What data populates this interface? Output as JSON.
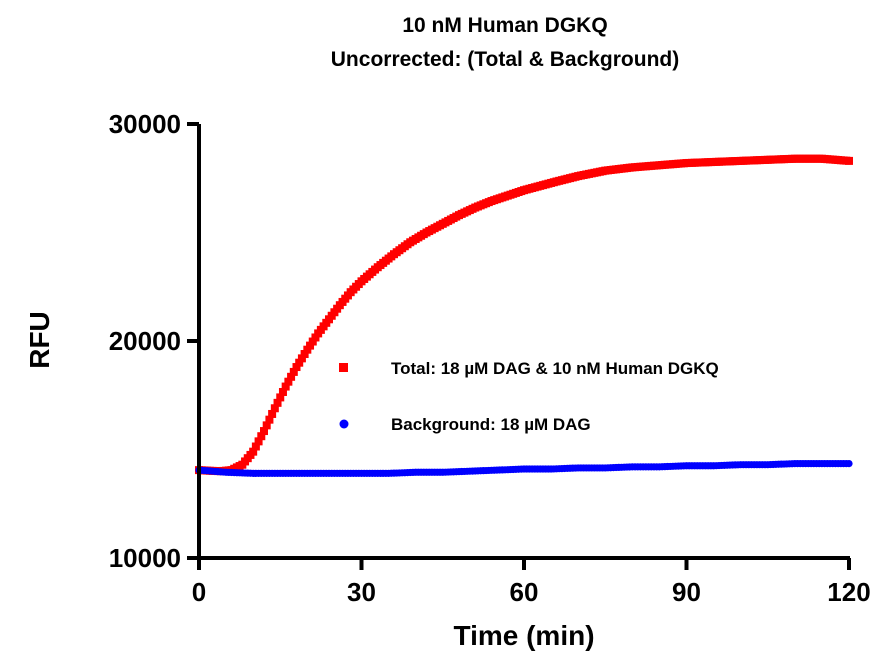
{
  "chart_data": {
    "type": "scatter",
    "title": "10 nM Human DGKQ",
    "subtitle": "Uncorrected: (Total & Background)",
    "xlabel": "Time (min)",
    "ylabel": "RFU",
    "xlim": [
      0,
      120
    ],
    "ylim": [
      10000,
      30000
    ],
    "x_ticks": [
      "0",
      "30",
      "60",
      "90",
      "120"
    ],
    "y_ticks": [
      "10000",
      "20000",
      "30000"
    ],
    "legend_position": "center-right",
    "grid": false,
    "series": [
      {
        "name": "Total: 18 µM DAG & 10 nM Human DGKQ",
        "color": "#ff0000",
        "marker": "square",
        "x": [
          0,
          2,
          4,
          6,
          8,
          10,
          12,
          14,
          16,
          18,
          20,
          22,
          24,
          26,
          28,
          30,
          33,
          36,
          39,
          42,
          45,
          48,
          51,
          54,
          57,
          60,
          63,
          66,
          70,
          75,
          80,
          85,
          90,
          95,
          100,
          105,
          110,
          115,
          120
        ],
        "y": [
          14050,
          14020,
          14000,
          14050,
          14300,
          14900,
          15850,
          16900,
          17900,
          18800,
          19600,
          20350,
          21000,
          21650,
          22250,
          22750,
          23400,
          24000,
          24550,
          25000,
          25400,
          25800,
          26150,
          26450,
          26700,
          26950,
          27150,
          27350,
          27600,
          27850,
          28000,
          28100,
          28200,
          28250,
          28300,
          28350,
          28400,
          28400,
          28300
        ]
      },
      {
        "name": "Background: 18 µM DAG",
        "color": "#0000ff",
        "marker": "circle",
        "x": [
          0,
          5,
          10,
          15,
          20,
          25,
          30,
          35,
          40,
          45,
          50,
          55,
          60,
          65,
          70,
          75,
          80,
          85,
          90,
          95,
          100,
          105,
          110,
          115,
          120
        ],
        "y": [
          14050,
          13950,
          13900,
          13900,
          13900,
          13900,
          13900,
          13900,
          13950,
          13950,
          14000,
          14050,
          14100,
          14100,
          14150,
          14150,
          14200,
          14200,
          14250,
          14250,
          14300,
          14300,
          14350,
          14350,
          14350
        ]
      }
    ]
  }
}
